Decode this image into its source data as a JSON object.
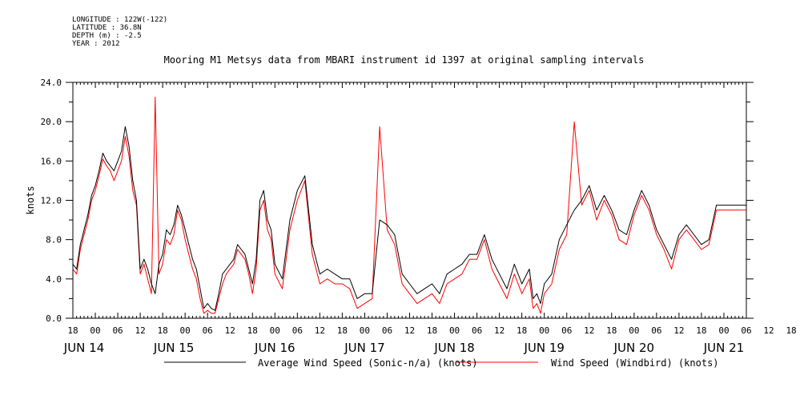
{
  "meta": {
    "longitude": "LONGITUDE : 122W(-122)",
    "latitude": "LATITUDE : 36.8N",
    "depth": "DEPTH (m) : -2.5",
    "year": "YEAR : 2012"
  },
  "chart_data": {
    "type": "line",
    "title": "Mooring M1 Metsys data from MBARI instrument id 1397 at original sampling intervals",
    "ylabel": "knots",
    "xlabel": "",
    "ylim": [
      0,
      24
    ],
    "yticks": [
      "0.0",
      "4.0",
      "8.0",
      "12.0",
      "16.0",
      "20.0",
      "24.0"
    ],
    "xlim_hours": [
      -6,
      174
    ],
    "hour_ticks": [
      "18",
      "00",
      "06",
      "12",
      "18",
      "00",
      "06",
      "12",
      "18",
      "00",
      "06",
      "12",
      "18",
      "00",
      "06",
      "12",
      "18",
      "00",
      "06",
      "12",
      "18",
      "00",
      "06",
      "12",
      "18",
      "00",
      "06",
      "12",
      "18",
      "00",
      "06",
      "12",
      "18"
    ],
    "day_labels": [
      "JUN 14",
      "JUN 15",
      "JUN 16",
      "JUN 17",
      "JUN 18",
      "JUN 19",
      "JUN 20",
      "JUN 21"
    ],
    "legend": [
      {
        "name": "Average Wind Speed (Sonic-n/a) (knots)",
        "color": "#000000"
      },
      {
        "name": "Wind Speed (Windbird) (knots)",
        "color": "#ff0000"
      }
    ],
    "series": [
      {
        "name": "Average Wind Speed (Sonic-n/a) (knots)",
        "color": "#000000",
        "x": [
          -6,
          -5,
          -4,
          -3,
          -2,
          -1,
          0,
          1,
          2,
          3,
          4,
          5,
          6,
          7,
          8,
          9,
          10,
          11,
          12,
          13,
          14,
          15,
          16,
          17,
          18,
          19,
          20,
          21,
          22,
          23,
          24,
          25,
          26,
          27,
          28,
          29,
          30,
          31,
          32,
          33,
          34,
          35,
          36,
          37,
          38,
          39,
          40,
          41,
          42,
          43,
          44,
          45,
          46,
          47,
          48,
          50,
          52,
          54,
          56,
          58,
          60,
          62,
          64,
          66,
          68,
          70,
          72,
          74,
          76,
          78,
          80,
          82,
          84,
          86,
          88,
          90,
          92,
          94,
          96,
          98,
          100,
          102,
          104,
          106,
          108,
          110,
          112,
          114,
          116,
          117,
          118,
          119,
          120,
          122,
          124,
          126,
          128,
          130,
          132,
          134,
          136,
          138,
          140,
          142,
          144,
          146,
          148,
          150,
          152,
          154,
          156,
          158,
          160,
          162,
          164,
          166,
          168,
          170,
          172,
          174
        ],
        "y": [
          5.5,
          5.0,
          7.5,
          9.0,
          10.5,
          12.5,
          13.5,
          15.0,
          16.8,
          16.0,
          15.5,
          15.0,
          16.0,
          17.0,
          19.5,
          17.5,
          14.0,
          12.0,
          5.0,
          6.0,
          5.0,
          3.5,
          2.5,
          5.5,
          6.5,
          9.0,
          8.5,
          9.5,
          11.5,
          10.5,
          9.0,
          7.5,
          6.0,
          5.0,
          3.0,
          1.0,
          1.5,
          1.0,
          0.8,
          2.5,
          4.5,
          5.0,
          5.5,
          6.0,
          7.5,
          7.0,
          6.5,
          5.0,
          3.5,
          6.0,
          12.0,
          13.0,
          10.0,
          9.0,
          5.5,
          4.0,
          10.0,
          13.0,
          14.5,
          7.5,
          4.5,
          5.0,
          4.5,
          4.0,
          4.0,
          2.0,
          2.5,
          2.5,
          10.0,
          9.5,
          8.5,
          4.5,
          3.5,
          2.5,
          3.0,
          3.5,
          2.5,
          4.5,
          5.0,
          5.5,
          6.5,
          6.5,
          8.5,
          6.0,
          4.5,
          3.0,
          5.5,
          3.5,
          5.0,
          2.0,
          2.5,
          1.5,
          3.5,
          4.5,
          8.0,
          9.5,
          11.0,
          12.0,
          13.5,
          11.0,
          12.5,
          11.0,
          9.0,
          8.5,
          11.0,
          13.0,
          11.5,
          9.0,
          7.5,
          6.0,
          8.5,
          9.5,
          8.5,
          7.5,
          8.0,
          11.5,
          11.5,
          11.5,
          11.5,
          11.5
        ],
        "_note": "approximate digitized values"
      },
      {
        "name": "Wind Speed (Windbird) (knots)",
        "color": "#ff0000",
        "x": [
          -6,
          -5,
          -4,
          -3,
          -2,
          -1,
          0,
          1,
          2,
          3,
          4,
          5,
          6,
          7,
          8,
          9,
          10,
          11,
          12,
          13,
          14,
          15,
          16,
          17,
          18,
          19,
          20,
          21,
          22,
          23,
          24,
          25,
          26,
          27,
          28,
          29,
          30,
          31,
          32,
          33,
          34,
          35,
          36,
          37,
          38,
          39,
          40,
          41,
          42,
          43,
          44,
          45,
          46,
          47,
          48,
          50,
          52,
          54,
          56,
          58,
          60,
          62,
          64,
          66,
          68,
          70,
          72,
          74,
          76,
          78,
          80,
          82,
          84,
          86,
          88,
          90,
          92,
          94,
          96,
          98,
          100,
          102,
          104,
          106,
          108,
          110,
          112,
          114,
          116,
          117,
          118,
          119,
          120,
          122,
          124,
          126,
          128,
          130,
          132,
          134,
          136,
          138,
          140,
          142,
          144,
          146,
          148,
          150,
          152,
          154,
          156,
          158,
          160,
          162,
          164,
          166,
          168,
          170,
          172,
          174
        ],
        "y": [
          5.0,
          4.5,
          7.0,
          8.5,
          10.0,
          12.0,
          13.0,
          14.5,
          16.2,
          15.5,
          15.0,
          14.0,
          15.0,
          16.0,
          18.5,
          16.5,
          13.0,
          11.5,
          4.5,
          5.5,
          4.0,
          2.5,
          22.5,
          4.5,
          5.5,
          8.0,
          7.5,
          8.5,
          11.0,
          10.0,
          8.0,
          6.5,
          5.0,
          4.0,
          2.0,
          0.5,
          0.8,
          0.5,
          0.5,
          2.0,
          3.5,
          4.5,
          5.0,
          5.5,
          7.0,
          6.5,
          6.0,
          4.5,
          2.5,
          5.0,
          11.0,
          12.0,
          9.0,
          8.0,
          4.5,
          3.0,
          9.0,
          12.0,
          14.0,
          6.5,
          3.5,
          4.0,
          3.5,
          3.5,
          3.0,
          1.0,
          1.5,
          2.0,
          19.5,
          9.0,
          7.5,
          3.5,
          2.5,
          1.5,
          2.0,
          2.5,
          1.5,
          3.5,
          4.0,
          4.5,
          6.0,
          6.0,
          8.0,
          5.0,
          3.5,
          2.0,
          4.5,
          2.5,
          4.0,
          1.0,
          1.5,
          0.5,
          2.5,
          3.5,
          7.0,
          8.5,
          20.0,
          11.5,
          13.0,
          10.0,
          12.0,
          10.5,
          8.0,
          7.5,
          10.5,
          12.5,
          11.0,
          8.5,
          7.0,
          5.0,
          8.0,
          9.0,
          8.0,
          7.0,
          7.5,
          11.0,
          11.0,
          11.0,
          11.0,
          11.0
        ],
        "_note": "approximate digitized values"
      }
    ]
  }
}
